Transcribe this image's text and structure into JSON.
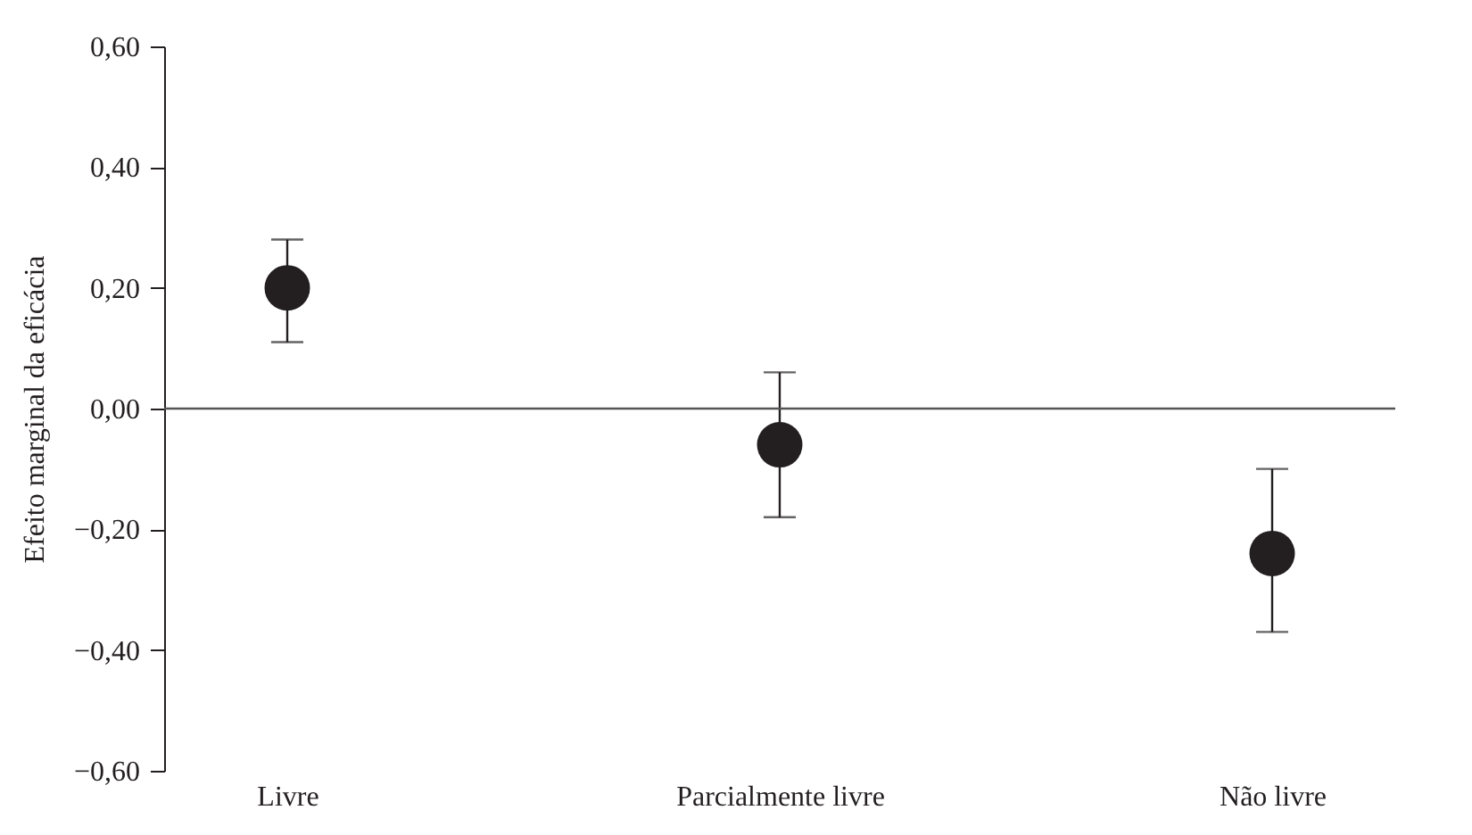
{
  "chart_data": {
    "type": "scatter",
    "ylabel": "Efeito marginal da eficácia",
    "categories": [
      "Livre",
      "Parcialmente livre",
      "Não livre"
    ],
    "series": [
      {
        "color": "#231f20",
        "values": [
          0.2,
          -0.06,
          -0.24
        ],
        "errors": [
          [
            0.11,
            0.28
          ],
          [
            -0.18,
            0.06
          ],
          [
            -0.37,
            -0.1
          ]
        ]
      }
    ],
    "ylim": [
      -0.6,
      0.6
    ],
    "yticks": [
      {
        "value": -0.6,
        "label": "−0,60"
      },
      {
        "value": -0.4,
        "label": "−0,40"
      },
      {
        "value": -0.2,
        "label": "−0,20"
      },
      {
        "value": 0,
        "label": "0,00"
      },
      {
        "value": 0.2,
        "label": "0,20"
      },
      {
        "value": 0.4,
        "label": "0,40"
      },
      {
        "value": 0.6,
        "label": "0,60"
      }
    ],
    "ref_lines": [
      {
        "axis": "y",
        "value": 0,
        "color": "#555555"
      }
    ],
    "marker": "circle",
    "grid": false
  }
}
